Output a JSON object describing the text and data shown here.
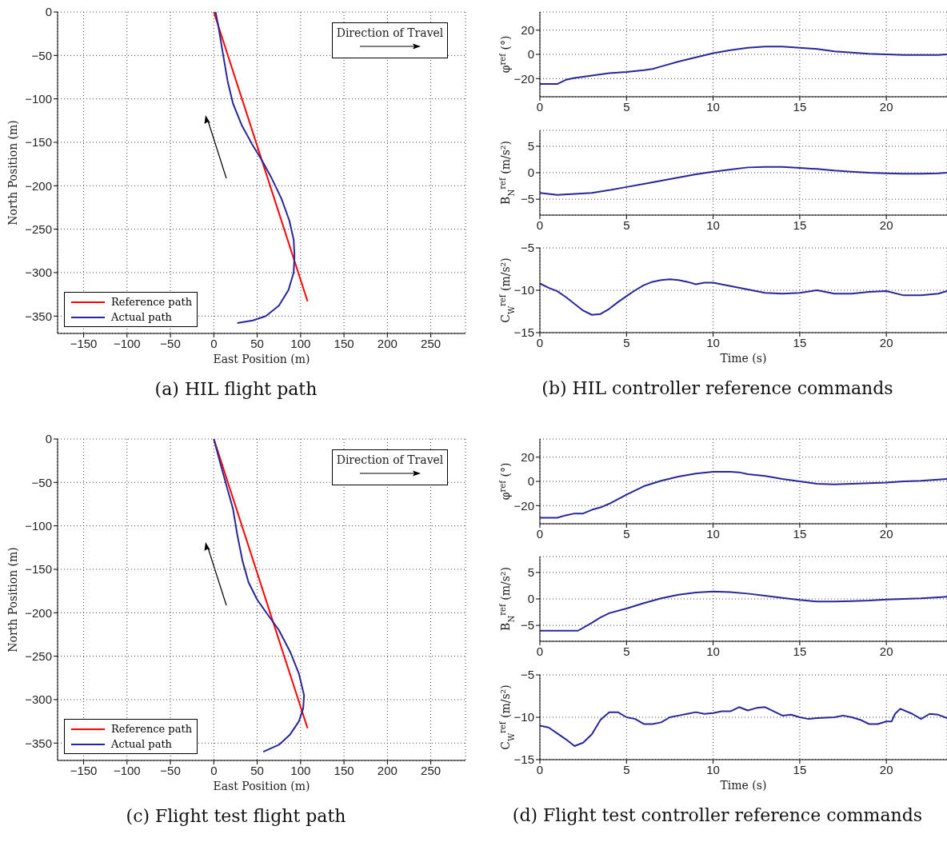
{
  "chart_data": [
    {
      "type": "line",
      "title": "(a) HIL flight path",
      "xlabel": "East Position (m)",
      "ylabel": "North Position (m)",
      "xlim": [
        -180,
        290
      ],
      "ylim": [
        -370,
        0
      ],
      "xticks": [
        -150,
        -100,
        -50,
        0,
        50,
        100,
        150,
        200,
        250
      ],
      "yticks": [
        -350,
        -300,
        -250,
        -200,
        -150,
        -100,
        -50,
        0
      ],
      "grid": true,
      "legend": "bottom left",
      "annotations": [
        "Direction of Travel"
      ],
      "series": [
        {
          "name": "Reference path",
          "color": "#ff0000",
          "x": [
            0,
            108
          ],
          "values": [
            0,
            -333
          ]
        },
        {
          "name": "Actual path",
          "color": "#27279b",
          "x": [
            2,
            5,
            10,
            16,
            22,
            32,
            44,
            55,
            66,
            78,
            87,
            92,
            93,
            92,
            86,
            75,
            60,
            45,
            27
          ],
          "values": [
            0,
            -15,
            -45,
            -80,
            -105,
            -130,
            -152,
            -170,
            -190,
            -215,
            -240,
            -262,
            -280,
            -300,
            -320,
            -338,
            -350,
            -355,
            -358
          ]
        }
      ]
    },
    {
      "type": "line",
      "ylabel": "φ$^{ref}$ (°)",
      "xlim": [
        0,
        23.5
      ],
      "ylim": [
        -35,
        35
      ],
      "xticks": [
        0,
        5,
        10,
        15,
        20
      ],
      "yticks": [
        -20,
        0,
        20
      ],
      "grid": true,
      "series": [
        {
          "color": "#27279b",
          "x": [
            0,
            1,
            1.5,
            2,
            3,
            4,
            5,
            6,
            6.5,
            7,
            8,
            9,
            10,
            11,
            12,
            13,
            14,
            14.5,
            15,
            16,
            17,
            18,
            19,
            20,
            21,
            22,
            23,
            23.5
          ],
          "values": [
            -24.5,
            -24.5,
            -21,
            -19.5,
            -17.5,
            -15.5,
            -14.5,
            -13,
            -12,
            -10,
            -6,
            -2.5,
            1,
            3.5,
            5.5,
            6.5,
            6.5,
            6,
            5.5,
            4.5,
            2.5,
            1.5,
            0.5,
            0,
            -0.5,
            -0.5,
            -0.5,
            0
          ]
        }
      ]
    },
    {
      "type": "line",
      "ylabel": "B$_{N}$$^{ref}$ (m/s²)",
      "xlim": [
        0,
        23.5
      ],
      "ylim": [
        -8,
        8
      ],
      "xticks": [
        0,
        5,
        10,
        15,
        20
      ],
      "yticks": [
        -5,
        0,
        5
      ],
      "grid": true,
      "series": [
        {
          "color": "#27279b",
          "x": [
            0,
            1,
            2,
            3,
            4,
            5,
            6,
            7,
            8,
            9,
            10,
            11,
            12,
            13,
            14,
            15,
            16,
            17,
            18,
            19,
            20,
            21,
            22,
            23,
            23.5
          ],
          "values": [
            -3.8,
            -4.2,
            -4,
            -3.8,
            -3.3,
            -2.7,
            -2.1,
            -1.5,
            -0.9,
            -0.3,
            0.2,
            0.6,
            1,
            1.1,
            1.1,
            0.9,
            0.7,
            0.4,
            0.2,
            0,
            -0.1,
            -0.2,
            -0.2,
            -0.1,
            0
          ]
        }
      ]
    },
    {
      "type": "line",
      "title": "(b) HIL controller reference commands",
      "xlabel": "Time (s)",
      "ylabel": "C$_{W}$$^{ref}$ (m/s²)",
      "xlim": [
        0,
        23.5
      ],
      "ylim": [
        -15,
        -5
      ],
      "xticks": [
        0,
        5,
        10,
        15,
        20
      ],
      "yticks": [
        -15,
        -10,
        -5
      ],
      "grid": true,
      "series": [
        {
          "color": "#27279b",
          "x": [
            0,
            0.5,
            1,
            1.5,
            2,
            2.5,
            3,
            3.5,
            4,
            4.5,
            5,
            5.5,
            6,
            6.5,
            7,
            7.5,
            8,
            8.5,
            9,
            9.5,
            10,
            11,
            12,
            13,
            14,
            15,
            16,
            17,
            18,
            19,
            20,
            21,
            22,
            23,
            23.5
          ],
          "values": [
            -9.2,
            -9.7,
            -10.1,
            -10.8,
            -11.6,
            -12.4,
            -12.9,
            -12.8,
            -12.2,
            -11.4,
            -10.7,
            -10,
            -9.4,
            -9,
            -8.8,
            -8.7,
            -8.8,
            -9,
            -9.3,
            -9.1,
            -9.1,
            -9.5,
            -9.9,
            -10.3,
            -10.4,
            -10.3,
            -10,
            -10.4,
            -10.4,
            -10.2,
            -10.1,
            -10.6,
            -10.6,
            -10.4,
            -10.1
          ]
        }
      ]
    },
    {
      "type": "line",
      "title": "(c) Flight test flight path",
      "xlabel": "East Position (m)",
      "ylabel": "North Position (m)",
      "xlim": [
        -180,
        290
      ],
      "ylim": [
        -370,
        0
      ],
      "xticks": [
        -150,
        -100,
        -50,
        0,
        50,
        100,
        150,
        200,
        250
      ],
      "yticks": [
        -350,
        -300,
        -250,
        -200,
        -150,
        -100,
        -50,
        0
      ],
      "grid": true,
      "legend": "bottom left",
      "annotations": [
        "Direction of Travel"
      ],
      "series": [
        {
          "name": "Reference path",
          "color": "#ff0000",
          "x": [
            0,
            108
          ],
          "values": [
            0,
            -333
          ]
        },
        {
          "name": "Actual path",
          "color": "#27279b",
          "x": [
            0,
            8,
            15,
            22,
            27,
            33,
            40,
            50,
            62,
            75,
            88,
            98,
            104,
            103,
            98,
            88,
            75,
            57
          ],
          "values": [
            0,
            -30,
            -55,
            -80,
            -110,
            -140,
            -165,
            -185,
            -202,
            -220,
            -245,
            -270,
            -295,
            -310,
            -325,
            -340,
            -352,
            -360
          ]
        }
      ]
    },
    {
      "type": "line",
      "ylabel": "φ$^{ref}$ (°)",
      "xlim": [
        0,
        23.5
      ],
      "ylim": [
        -35,
        35
      ],
      "xticks": [
        0,
        5,
        10,
        15,
        20
      ],
      "yticks": [
        -20,
        0,
        20
      ],
      "grid": true,
      "series": [
        {
          "color": "#27279b",
          "x": [
            0,
            1,
            1.5,
            2,
            2.5,
            3,
            3.5,
            4,
            5,
            6,
            7,
            8,
            9,
            10,
            11,
            11.5,
            12,
            13,
            14,
            15,
            16,
            17,
            18,
            19,
            20,
            21,
            22,
            23,
            23.5
          ],
          "values": [
            -30,
            -30,
            -28,
            -26.5,
            -26.5,
            -23.5,
            -21.5,
            -18.5,
            -11,
            -4,
            0.5,
            4,
            6.5,
            8,
            8,
            7.5,
            6,
            4.5,
            2,
            0,
            -2,
            -2.5,
            -2,
            -1.5,
            -1,
            0,
            0.5,
            1.5,
            2
          ]
        }
      ]
    },
    {
      "type": "line",
      "ylabel": "B$_{N}$$^{ref}$ (m/s²)",
      "xlim": [
        0,
        23.5
      ],
      "ylim": [
        -8,
        8
      ],
      "xticks": [
        0,
        5,
        10,
        15,
        20
      ],
      "yticks": [
        -5,
        0,
        5
      ],
      "grid": true,
      "series": [
        {
          "color": "#27279b",
          "x": [
            0,
            2.2,
            3,
            3.5,
            4,
            5,
            6,
            7,
            8,
            9,
            10,
            11,
            12,
            13,
            14,
            15,
            16,
            17,
            18,
            19,
            20,
            21,
            22,
            23,
            23.5
          ],
          "values": [
            -6,
            -6,
            -4.5,
            -3.5,
            -2.7,
            -1.8,
            -0.8,
            0.1,
            0.8,
            1.2,
            1.4,
            1.3,
            1,
            0.6,
            0.2,
            -0.2,
            -0.5,
            -0.5,
            -0.4,
            -0.3,
            -0.1,
            0,
            0.1,
            0.3,
            0.4
          ]
        }
      ]
    },
    {
      "type": "line",
      "title": "(d) Flight test controller reference commands",
      "xlabel": "Time (s)",
      "ylabel": "C$_{W}$$^{ref}$ (m/s²)",
      "xlim": [
        0,
        23.5
      ],
      "ylim": [
        -15,
        -5
      ],
      "xticks": [
        0,
        5,
        10,
        15,
        20
      ],
      "yticks": [
        -15,
        -10,
        -5
      ],
      "grid": true,
      "series": [
        {
          "color": "#27279b",
          "x": [
            0,
            0.5,
            1,
            1.5,
            2,
            2.5,
            3,
            3.5,
            4,
            4.5,
            5,
            5.5,
            6,
            6.5,
            7,
            7.5,
            8,
            8.5,
            9,
            9.5,
            10,
            10.5,
            11,
            11.5,
            12,
            12.5,
            13,
            13.5,
            14,
            14.5,
            15,
            15.5,
            16,
            17,
            17.5,
            18,
            18.5,
            19,
            19.5,
            20,
            20.3,
            20.5,
            20.8,
            21.5,
            22,
            22.5,
            23,
            23.5
          ],
          "values": [
            -11,
            -11.2,
            -11.9,
            -12.6,
            -13.4,
            -13,
            -12,
            -10.3,
            -9.4,
            -9.4,
            -10,
            -10.2,
            -10.8,
            -10.8,
            -10.6,
            -10,
            -9.8,
            -9.6,
            -9.4,
            -9.6,
            -9.5,
            -9.3,
            -9.3,
            -8.8,
            -9.2,
            -8.9,
            -8.8,
            -9.3,
            -9.8,
            -9.7,
            -10,
            -10.2,
            -10.1,
            -10,
            -9.8,
            -10,
            -10.3,
            -10.8,
            -10.8,
            -10.5,
            -10.5,
            -9.6,
            -9,
            -9.6,
            -10.2,
            -9.6,
            -9.7,
            -10.1
          ]
        }
      ]
    }
  ]
}
